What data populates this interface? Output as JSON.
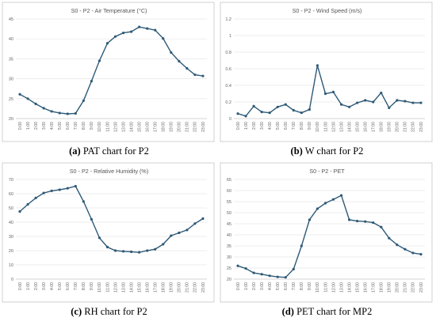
{
  "chart_data": [
    {
      "type": "line",
      "title": "S0 - P2 - Air Temperature  (°C)",
      "categories": [
        "0:00",
        "1:00",
        "2:00",
        "3:00",
        "4:00",
        "5:00",
        "6:00",
        "7:00",
        "8:00",
        "9:00",
        "10:00",
        "11:00",
        "12:00",
        "13:00",
        "14:00",
        "15:00",
        "16:00",
        "17:00",
        "18:00",
        "19:00",
        "20:00",
        "21:00",
        "22:00",
        "23:00"
      ],
      "values": [
        26.1,
        25.0,
        23.7,
        22.6,
        21.8,
        21.4,
        21.2,
        21.3,
        24.5,
        29.4,
        34.5,
        38.9,
        40.6,
        41.5,
        41.8,
        43.0,
        42.6,
        42.2,
        40.1,
        36.6,
        34.4,
        32.6,
        31.0,
        30.7
      ],
      "ylim": [
        20,
        45
      ],
      "yticks": [
        20,
        25,
        30,
        35,
        40,
        45
      ],
      "grid": true,
      "color": "#2e5a77",
      "caption_letter": "(a)",
      "caption_text": " PAT chart for P2"
    },
    {
      "type": "line",
      "title": "S0 - P2 - Wind Speed  (m/s)",
      "categories": [
        "0:00",
        "1:00",
        "2:00",
        "3:00",
        "4:00",
        "5:00",
        "6:00",
        "7:00",
        "8:00",
        "9:00",
        "10:00",
        "11:00",
        "12:00",
        "13:00",
        "14:00",
        "15:00",
        "16:00",
        "17:00",
        "18:00",
        "19:00",
        "20:00",
        "21:00",
        "22:00",
        "23:00"
      ],
      "values": [
        0.06,
        0.03,
        0.15,
        0.08,
        0.07,
        0.14,
        0.17,
        0.1,
        0.07,
        0.11,
        0.64,
        0.3,
        0.32,
        0.17,
        0.14,
        0.19,
        0.22,
        0.2,
        0.31,
        0.13,
        0.22,
        0.21,
        0.19,
        0.19
      ],
      "ylim": [
        0,
        1.2
      ],
      "yticks": [
        0,
        0.2,
        0.4,
        0.6,
        0.8,
        1,
        1.2
      ],
      "grid": true,
      "color": "#2e5a77",
      "caption_letter": "(b)",
      "caption_text": " W chart for P2"
    },
    {
      "type": "line",
      "title": "S0 - P2 - Relative Humidity  (%)",
      "categories": [
        "0:00",
        "1:00",
        "2:00",
        "3:00",
        "4:00",
        "5:00",
        "6:00",
        "7:00",
        "8:00",
        "9:00",
        "10:00",
        "11:00",
        "12:00",
        "13:00",
        "14:00",
        "15:00",
        "16:00",
        "17:00",
        "18:00",
        "19:00",
        "20:00",
        "21:00",
        "22:00",
        "23:00"
      ],
      "values": [
        47.5,
        52.5,
        57.0,
        60.5,
        62.0,
        62.8,
        63.8,
        65.3,
        54.5,
        42.0,
        29.0,
        22.5,
        20.0,
        19.5,
        19.2,
        18.8,
        20.0,
        21.0,
        24.5,
        30.5,
        32.5,
        34.5,
        39.0,
        42.5
      ],
      "ylim": [
        0,
        70
      ],
      "yticks": [
        0,
        10,
        20,
        30,
        40,
        50,
        60,
        70
      ],
      "grid": true,
      "color": "#2e5a77",
      "caption_letter": "(c)",
      "caption_text": " RH chart for P2"
    },
    {
      "type": "line",
      "title": "S0 - P2 - PET",
      "categories": [
        "0:00",
        "1:00",
        "2:00",
        "3:00",
        "4:00",
        "5:00",
        "6:00",
        "7:00",
        "8:00",
        "9:00",
        "10:00",
        "11:00",
        "12:00",
        "13:00",
        "14:00",
        "15:00",
        "16:00",
        "17:00",
        "18:00",
        "19:00",
        "20:00",
        "21:00",
        "22:00",
        "23:00"
      ],
      "values": [
        26.0,
        24.8,
        22.8,
        22.2,
        21.5,
        21.0,
        20.8,
        24.5,
        35.0,
        46.8,
        51.8,
        54.3,
        56.0,
        57.8,
        46.8,
        46.2,
        46.0,
        45.5,
        43.5,
        38.5,
        35.5,
        33.5,
        31.8,
        31.2
      ],
      "ylim": [
        20,
        65
      ],
      "yticks": [
        20,
        25,
        30,
        35,
        40,
        45,
        50,
        55,
        60,
        65
      ],
      "grid": true,
      "color": "#2e5a77",
      "caption_letter": "(d)",
      "caption_text": " PET chart for MP2"
    }
  ]
}
